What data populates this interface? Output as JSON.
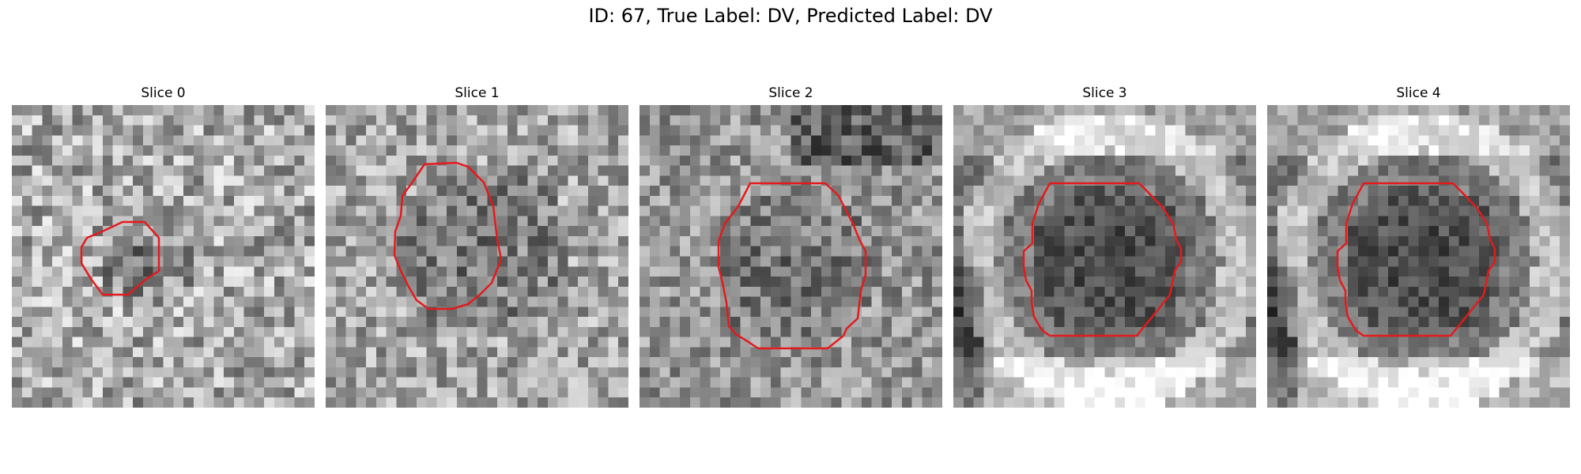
{
  "figure": {
    "title": "ID: 67, True Label: DV, Predicted Label: DV"
  },
  "panels": [
    {
      "title": "Slice 0"
    },
    {
      "title": "Slice 1"
    },
    {
      "title": "Slice 2"
    },
    {
      "title": "Slice 3"
    },
    {
      "title": "Slice 4"
    }
  ],
  "colors": {
    "background": "#ffffff",
    "contour": "#e41a1c"
  },
  "colormap": "gray"
}
